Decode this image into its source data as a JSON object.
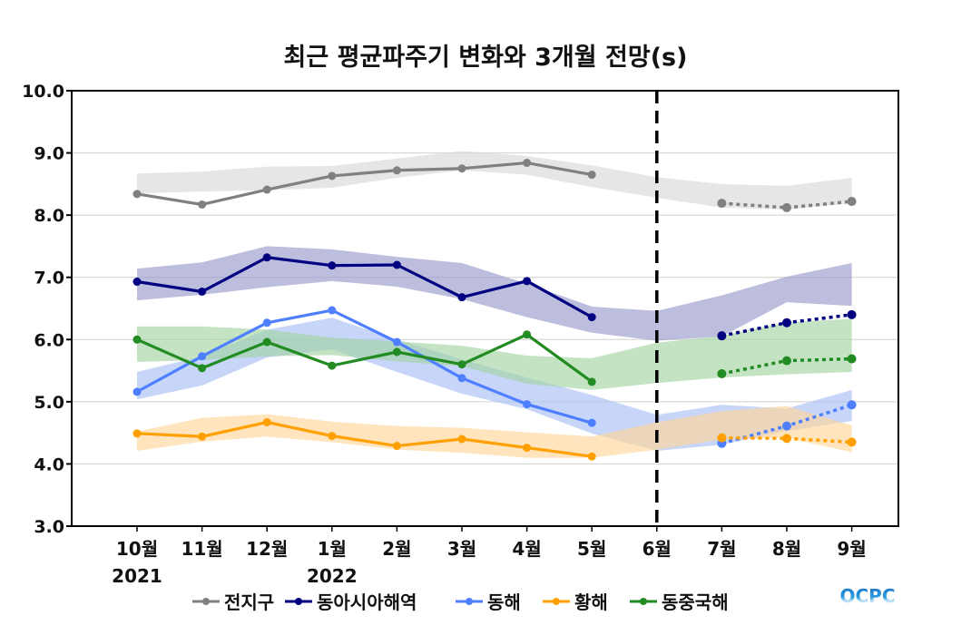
{
  "chart_data": {
    "type": "line",
    "title": "최근 평균파주기 변화와 3개월 전망(s)",
    "xlabel": "",
    "ylabel": "",
    "ylim": [
      3.0,
      10.0
    ],
    "yticks": [
      "3.0",
      "4.0",
      "5.0",
      "6.0",
      "7.0",
      "8.0",
      "9.0",
      "10.0"
    ],
    "grid": "horizontal",
    "categories": [
      "10월",
      "11월",
      "12월",
      "1월",
      "2월",
      "3월",
      "4월",
      "5월",
      "6월",
      "7월",
      "8월",
      "9월"
    ],
    "year_labels": [
      {
        "category_index": 0,
        "label": "2021"
      },
      {
        "category_index": 3,
        "label": "2022"
      }
    ],
    "divider": {
      "category": "6월",
      "style": "dashed"
    },
    "legend_position": "bottom",
    "series": [
      {
        "name": "전지구",
        "color": "#808080",
        "band_color": "#d9d9d9",
        "observed": [
          8.34,
          8.17,
          8.41,
          8.63,
          8.72,
          8.75,
          8.84,
          8.65,
          null,
          null,
          null,
          null
        ],
        "forecast": [
          null,
          null,
          null,
          null,
          null,
          null,
          null,
          null,
          null,
          8.19,
          8.12,
          8.22
        ],
        "band_upper": [
          8.67,
          8.7,
          8.78,
          8.79,
          8.91,
          9.03,
          8.95,
          8.8,
          8.61,
          8.5,
          8.47,
          8.6
        ],
        "band_lower": [
          8.35,
          8.38,
          8.4,
          8.44,
          8.6,
          8.72,
          8.65,
          8.45,
          8.28,
          8.12,
          8.09,
          8.19
        ]
      },
      {
        "name": "동아시아해역",
        "color": "#000080",
        "band_color": "#9999cc",
        "observed": [
          6.93,
          6.77,
          7.32,
          7.19,
          7.2,
          6.68,
          6.94,
          6.36,
          null,
          null,
          null,
          null
        ],
        "forecast": [
          null,
          null,
          null,
          null,
          null,
          null,
          null,
          null,
          null,
          6.06,
          6.27,
          6.4
        ],
        "band_upper": [
          7.14,
          7.24,
          7.5,
          7.45,
          7.33,
          7.23,
          6.9,
          6.53,
          6.46,
          6.71,
          7.01,
          7.23
        ],
        "band_lower": [
          6.63,
          6.72,
          6.84,
          6.94,
          6.85,
          6.65,
          6.36,
          6.11,
          5.98,
          6.05,
          6.6,
          6.54
        ]
      },
      {
        "name": "동해",
        "color": "#4d7fff",
        "band_color": "#a8bff5",
        "observed": [
          5.16,
          5.73,
          6.27,
          6.47,
          5.96,
          5.38,
          4.96,
          4.66,
          null,
          null,
          null,
          null
        ],
        "forecast": [
          null,
          null,
          null,
          null,
          null,
          null,
          null,
          null,
          null,
          4.33,
          4.61,
          4.95
        ],
        "band_upper": [
          5.48,
          5.73,
          6.16,
          6.35,
          6.0,
          5.68,
          5.39,
          5.11,
          4.79,
          4.95,
          4.89,
          5.19
        ],
        "band_lower": [
          5.04,
          5.26,
          5.71,
          5.84,
          5.48,
          5.13,
          4.88,
          4.49,
          4.21,
          4.31,
          4.53,
          4.69
        ]
      },
      {
        "name": "황해",
        "color": "#ffa000",
        "band_color": "#ffd699",
        "observed": [
          4.49,
          4.44,
          4.67,
          4.45,
          4.29,
          4.4,
          4.26,
          4.12,
          null,
          null,
          null,
          null
        ],
        "forecast": [
          null,
          null,
          null,
          null,
          null,
          null,
          null,
          null,
          null,
          4.42,
          4.41,
          4.35
        ],
        "band_upper": [
          4.52,
          4.74,
          4.8,
          4.68,
          4.61,
          4.58,
          4.51,
          4.44,
          4.67,
          4.85,
          4.93,
          4.62
        ],
        "band_lower": [
          4.21,
          4.36,
          4.44,
          4.35,
          4.23,
          4.18,
          4.1,
          4.1,
          4.23,
          4.39,
          4.42,
          4.19
        ]
      },
      {
        "name": "동중국해",
        "color": "#228b22",
        "band_color": "#a3d4a3",
        "observed": [
          6.0,
          5.54,
          5.96,
          5.58,
          5.8,
          5.6,
          6.08,
          5.32,
          null,
          null,
          null,
          null
        ],
        "forecast": [
          null,
          null,
          null,
          null,
          null,
          null,
          null,
          null,
          null,
          5.45,
          5.66,
          5.69
        ],
        "band_upper": [
          6.21,
          6.21,
          6.16,
          6.03,
          5.97,
          5.9,
          5.74,
          5.7,
          5.95,
          6.06,
          6.28,
          6.33
        ],
        "band_lower": [
          5.64,
          5.67,
          5.73,
          5.75,
          5.65,
          5.57,
          5.29,
          5.19,
          5.3,
          5.39,
          5.44,
          5.48
        ]
      }
    ]
  },
  "logo": {
    "text": "OCPC"
  }
}
